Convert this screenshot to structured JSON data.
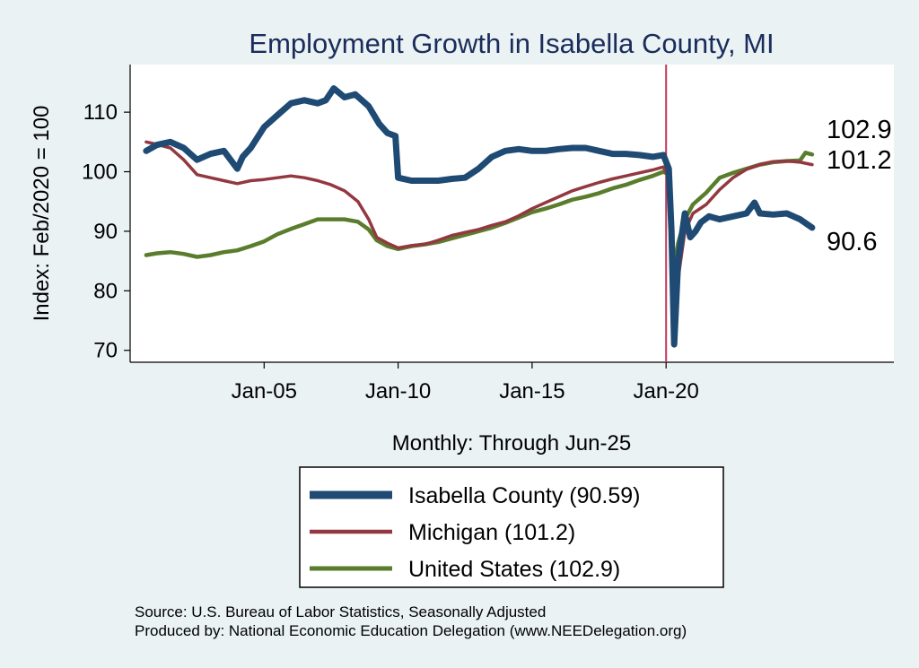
{
  "chart_data": {
    "type": "line",
    "title": "Employment Growth in Isabella  County, MI",
    "ylabel": "Index: Feb/2020 = 100",
    "xlabel": "Monthly: Through Jun-25",
    "ylim": [
      68,
      118
    ],
    "xlim": [
      2000.0,
      2028.5
    ],
    "y_ticks": [
      70,
      80,
      90,
      100,
      110
    ],
    "x_ticks": [
      {
        "value": 2005.0,
        "label": "Jan-05"
      },
      {
        "value": 2010.0,
        "label": "Jan-10"
      },
      {
        "value": 2015.0,
        "label": "Jan-15"
      },
      {
        "value": 2020.0,
        "label": "Jan-20"
      }
    ],
    "reference_line_x": 2020.0,
    "grid": false,
    "series": [
      {
        "name": "United States",
        "color": "#5a7d2d",
        "x": [
          2000.6,
          2001.0,
          2001.5,
          2002.0,
          2002.5,
          2003.0,
          2003.5,
          2004.0,
          2004.5,
          2005.0,
          2005.5,
          2006.0,
          2006.5,
          2007.0,
          2007.5,
          2008.0,
          2008.5,
          2008.9,
          2009.2,
          2009.6,
          2010.0,
          2010.5,
          2011.0,
          2011.5,
          2012.0,
          2012.5,
          2013.0,
          2013.5,
          2014.0,
          2014.5,
          2015.0,
          2015.5,
          2016.0,
          2016.5,
          2017.0,
          2017.5,
          2018.0,
          2018.5,
          2019.0,
          2019.5,
          2019.9,
          2020.1,
          2020.2,
          2020.3,
          2020.45,
          2020.7,
          2021.0,
          2021.5,
          2022.0,
          2022.5,
          2023.0,
          2023.5,
          2024.0,
          2024.5,
          2025.0,
          2025.2,
          2025.45
        ],
        "values": [
          86,
          86.3,
          86.5,
          86.2,
          85.7,
          86,
          86.5,
          86.8,
          87.5,
          88.3,
          89.5,
          90.4,
          91.2,
          92,
          92,
          92,
          91.6,
          90.3,
          88.5,
          87.5,
          87,
          87.5,
          87.8,
          88.2,
          88.8,
          89.4,
          90,
          90.6,
          91.4,
          92.3,
          93.2,
          93.8,
          94.5,
          95.3,
          95.8,
          96.4,
          97.2,
          97.8,
          98.6,
          99.3,
          100,
          99.5,
          91,
          84,
          88,
          92,
          94.5,
          96.5,
          99,
          99.8,
          100.5,
          101.2,
          101.6,
          101.8,
          101.9,
          103.2,
          102.9
        ]
      },
      {
        "name": "Michigan",
        "color": "#933840",
        "x": [
          2000.6,
          2001.0,
          2001.5,
          2002.0,
          2002.5,
          2003.0,
          2003.5,
          2004.0,
          2004.5,
          2005.0,
          2005.5,
          2006.0,
          2006.5,
          2007.0,
          2007.5,
          2008.0,
          2008.5,
          2008.9,
          2009.2,
          2009.6,
          2010.0,
          2010.5,
          2011.0,
          2011.5,
          2012.0,
          2012.5,
          2013.0,
          2013.5,
          2014.0,
          2014.5,
          2015.0,
          2015.5,
          2016.0,
          2016.5,
          2017.0,
          2017.5,
          2018.0,
          2018.5,
          2019.0,
          2019.5,
          2019.9,
          2020.1,
          2020.2,
          2020.3,
          2020.45,
          2020.7,
          2021.0,
          2021.5,
          2022.0,
          2022.5,
          2023.0,
          2023.5,
          2024.0,
          2024.5,
          2025.0,
          2025.45
        ],
        "values": [
          105,
          104.6,
          104,
          102,
          99.5,
          99,
          98.5,
          98,
          98.5,
          98.7,
          99,
          99.3,
          99,
          98.5,
          97.8,
          96.8,
          95,
          92,
          89,
          88,
          87.2,
          87.6,
          87.8,
          88.5,
          89.3,
          89.8,
          90.3,
          91,
          91.6,
          92.6,
          93.8,
          94.8,
          95.8,
          96.8,
          97.5,
          98.2,
          98.8,
          99.3,
          99.8,
          100.3,
          100.8,
          99,
          85,
          74,
          82,
          90,
          93,
          94.5,
          97,
          99,
          100.4,
          101.2,
          101.7,
          101.8,
          101.6,
          101.2
        ]
      },
      {
        "name": "Isabella  County",
        "color": "#1f4a73",
        "x": [
          2000.6,
          2001.0,
          2001.5,
          2002.0,
          2002.5,
          2003.0,
          2003.5,
          2004.0,
          2004.2,
          2004.5,
          2005.0,
          2005.5,
          2006.0,
          2006.5,
          2007.0,
          2007.3,
          2007.6,
          2008.0,
          2008.4,
          2008.9,
          2009.3,
          2009.6,
          2009.9,
          2010.0,
          2010.5,
          2011.0,
          2011.5,
          2012.0,
          2012.5,
          2013.0,
          2013.5,
          2014.0,
          2014.5,
          2015.0,
          2015.5,
          2016.0,
          2016.5,
          2017.0,
          2017.5,
          2018.0,
          2018.5,
          2019.0,
          2019.5,
          2019.9,
          2020.1,
          2020.2,
          2020.3,
          2020.45,
          2020.7,
          2020.9,
          2021.1,
          2021.3,
          2021.6,
          2022.0,
          2022.5,
          2023.0,
          2023.3,
          2023.5,
          2024.0,
          2024.5,
          2025.0,
          2025.45
        ],
        "values": [
          103.5,
          104.5,
          105,
          104,
          102,
          103,
          103.5,
          100.5,
          102.5,
          104,
          107.5,
          109.5,
          111.5,
          112,
          111.5,
          112,
          114,
          112.5,
          113,
          111,
          108,
          106.5,
          106,
          99,
          98.5,
          98.5,
          98.5,
          98.8,
          99,
          100.5,
          102.5,
          103.5,
          103.8,
          103.5,
          103.5,
          103.8,
          104,
          104,
          103.5,
          103,
          103,
          102.8,
          102.5,
          102.8,
          100.5,
          90,
          71,
          85,
          93,
          89,
          90,
          91.5,
          92.5,
          92,
          92.5,
          93,
          94.8,
          93,
          92.8,
          93,
          92,
          90.6
        ]
      }
    ],
    "end_labels": [
      {
        "series": "United States",
        "text": "102.9",
        "value": 102.9
      },
      {
        "series": "Michigan",
        "text": "101.2",
        "value": 101.2
      },
      {
        "series": "Isabella  County",
        "text": "90.6",
        "value": 90.6
      }
    ],
    "legend": [
      {
        "series": "Isabella  County",
        "label": "Isabella  County (90.59)"
      },
      {
        "series": "Michigan",
        "label": "Michigan (101.2)"
      },
      {
        "series": "United States",
        "label": "United States (102.9)"
      }
    ],
    "legend_position": "bottom-center",
    "notes": [
      "Source: U.S. Bureau of Labor Statistics, Seasonally Adjusted",
      "Produced by: National Economic Education Delegation (www.NEEDelegation.org)"
    ],
    "colors": {
      "background": "#eaf2f3",
      "plot_background": "#ffffff",
      "reference_line": "#c23a5a",
      "title": "#1a2c5b"
    }
  }
}
